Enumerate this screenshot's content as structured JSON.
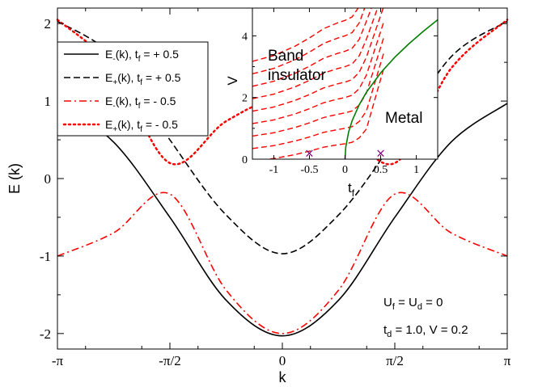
{
  "chart_data": [
    {
      "type": "line",
      "xlabel": "k",
      "ylabel": "E (k)",
      "xlim": [
        -3.14159,
        3.14159
      ],
      "ylim": [
        -2.2,
        2.2
      ],
      "x_tick_labels": [
        "-π",
        "-π/2",
        "0",
        "π/2",
        "π"
      ],
      "y_tick_labels": [
        "-2",
        "-1",
        "0",
        "1",
        "2"
      ],
      "y_tick_values": [
        -2,
        -1,
        0,
        1,
        2
      ],
      "grid": false,
      "legend_position": "top-left",
      "series": [
        {
          "name": "E-(k),  tf = + 0.5",
          "name_parts": {
            "base": "E",
            "sub": "-",
            "mid": "(k),  t",
            "sub2": "f",
            "tail": " = + 0.5"
          },
          "style": "solid",
          "color": "#000000",
          "x": [
            -3.14159,
            -2.356,
            -1.571,
            -0.785,
            0,
            0.785,
            1.571,
            2.356,
            3.14159
          ],
          "values": [
            0.97,
            0.47,
            -0.5,
            -1.57,
            -2.03,
            -1.57,
            -0.5,
            0.47,
            0.97
          ]
        },
        {
          "name": "E+(k),  tf = + 0.5",
          "name_parts": {
            "base": "E",
            "sub": "+",
            "mid": "(k),  t",
            "sub2": "f",
            "tail": " = + 0.5"
          },
          "style": "dashed",
          "color": "#000000",
          "x": [
            -3.14159,
            -2.356,
            -1.571,
            -0.785,
            0,
            0.785,
            1.571,
            2.356,
            3.14159
          ],
          "values": [
            2.03,
            1.57,
            0.5,
            -0.47,
            -0.97,
            -0.47,
            0.5,
            1.57,
            2.03
          ]
        },
        {
          "name": "E-(k),  tf = - 0.5",
          "name_parts": {
            "base": "E",
            "sub": "-",
            "mid": "(k),  t",
            "sub2": "f",
            "tail": " = - 0.5"
          },
          "style": "dashdot",
          "color": "#ff0000",
          "x": [
            -3.14159,
            -2.356,
            -1.571,
            -0.785,
            0,
            0.785,
            1.571,
            2.356,
            3.14159
          ],
          "values": [
            -1.0,
            -0.7,
            -0.2,
            -1.44,
            -2.0,
            -1.44,
            -0.2,
            -0.7,
            -1.0
          ]
        },
        {
          "name": "E+(k),  tf = - 0.5",
          "name_parts": {
            "base": "E",
            "sub": "+",
            "mid": "(k),  t",
            "sub2": "f",
            "tail": " = - 0.5"
          },
          "style": "dotted",
          "color": "#ff0000",
          "x": [
            -3.14159,
            -2.356,
            -1.571,
            -0.785,
            0,
            0.785,
            1.571,
            2.356,
            3.14159
          ],
          "values": [
            2.05,
            1.42,
            0.2,
            0.74,
            1.03,
            0.74,
            0.2,
            1.42,
            2.05
          ]
        }
      ],
      "annotations": {
        "line1": {
          "parts": [
            "U",
            "f",
            " = U",
            "d",
            " = 0"
          ]
        },
        "line2": {
          "parts": [
            "t",
            "d",
            " = 1.0,   V = 0.2"
          ]
        }
      }
    },
    {
      "type": "line",
      "role": "inset",
      "xlabel": "tf",
      "xlabel_parts": [
        "t",
        "f"
      ],
      "ylabel": "V",
      "xlim": [
        -1.3,
        1.3
      ],
      "ylim": [
        0,
        4.9
      ],
      "x_tick_values": [
        -1,
        -0.5,
        0,
        0.5,
        1
      ],
      "x_tick_labels": [
        "-1",
        "-0.5",
        "0",
        "0.5",
        "1"
      ],
      "y_tick_values": [
        0,
        2,
        4
      ],
      "y_tick_labels": [
        "0",
        "2",
        "4"
      ],
      "grid": false,
      "region_labels": {
        "band_line1": "Band",
        "band_line2": "insulator",
        "metal": "Metal"
      },
      "boundary": {
        "name": "phase boundary",
        "color": "#008000",
        "style": "solid",
        "x": [
          0,
          0.01,
          0.05,
          0.1,
          0.2,
          0.3,
          0.5,
          0.7,
          0.9,
          1.1,
          1.3
        ],
        "values": [
          0,
          0.39,
          0.88,
          1.25,
          1.77,
          2.17,
          2.8,
          3.31,
          3.75,
          4.15,
          4.52
        ]
      },
      "contours": {
        "color": "#ff0000",
        "style": "dashed",
        "levels_at_origin": [
          0.5,
          1.0,
          1.5,
          2.0,
          2.5,
          3.0,
          3.5,
          4.0,
          4.5
        ],
        "curve_shape_x": [
          -1.3,
          -1.0,
          -0.7,
          -0.5,
          -0.3,
          -0.1,
          0.0,
          0.1,
          0.2,
          0.3
        ],
        "curve_shape_dv": [
          -0.35,
          -0.3,
          -0.22,
          -0.15,
          -0.07,
          -0.02,
          0.0,
          0.03,
          0.12,
          0.3
        ]
      },
      "markers": {
        "symbol": "×",
        "color": "#800080",
        "points": [
          {
            "x": -0.5,
            "y": 0.2
          },
          {
            "x": 0.5,
            "y": 0.2
          }
        ]
      }
    }
  ]
}
